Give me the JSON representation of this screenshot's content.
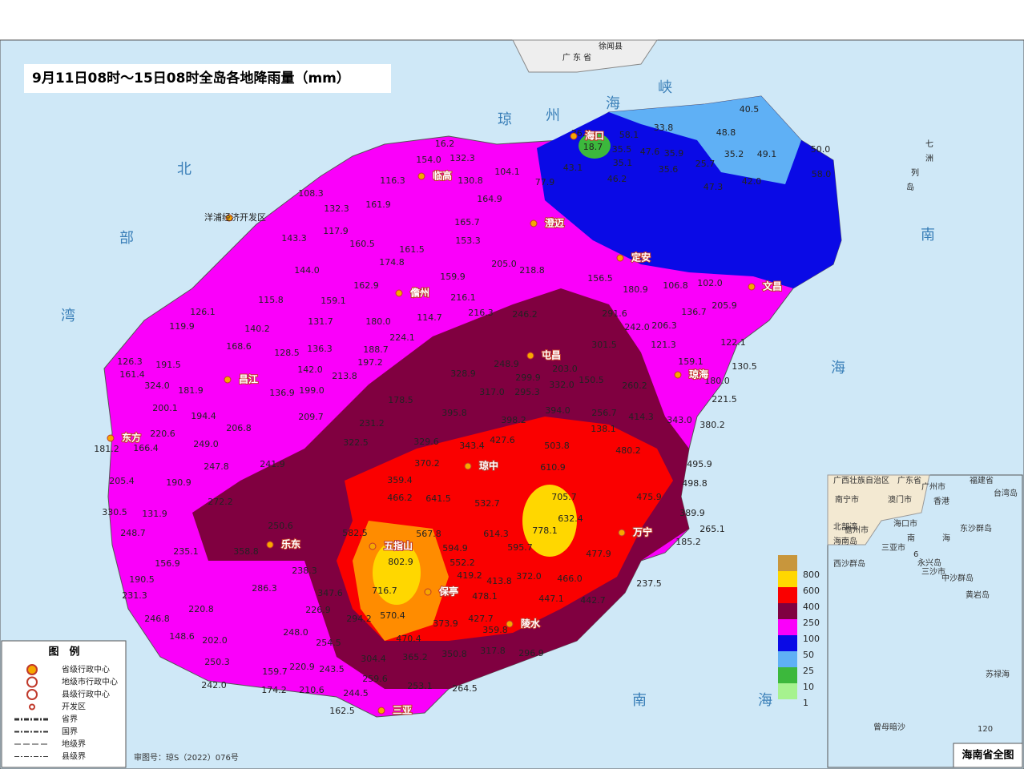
{
  "title": "9月11日08时～15日08时全岛各地降雨量（mm）",
  "approval": "审图号：琼S（2022）076号",
  "legend": {
    "title": "图　例",
    "items": [
      "省级行政中心",
      "地级市行政中心",
      "县级行政中心",
      "开发区",
      "省界",
      "国界",
      "地级界",
      "县级界"
    ]
  },
  "scale": [
    {
      "label": "800",
      "color": "#c8963c"
    },
    {
      "label": "600",
      "color": "#ffd700"
    },
    {
      "label": "400",
      "color": "#fa0000"
    },
    {
      "label": "250",
      "color": "#800040"
    },
    {
      "label": "100",
      "color": "#fa00fa"
    },
    {
      "label": "50",
      "color": "#0a0ae6"
    },
    {
      "label": "25",
      "color": "#5fb0f5"
    },
    {
      "label": "10",
      "color": "#3cb83c"
    },
    {
      "label": "1",
      "color": "#a6f28f"
    }
  ],
  "seas": [
    "琼",
    "州",
    "海",
    "峡",
    "北",
    "部",
    "湾",
    "南",
    "海",
    "南",
    "海",
    "广 东 省",
    "徐闻县",
    "七",
    "洲",
    "列",
    "岛"
  ],
  "places": [
    "海口",
    "临高",
    "澄迈",
    "定安",
    "文昌",
    "儋州",
    "洋浦经济开发区",
    "屯昌",
    "琼海",
    "昌江",
    "东方",
    "琼中",
    "五指山",
    "乐东",
    "万宁",
    "保亭",
    "陵水",
    "三亚"
  ],
  "stations": [
    "40.5",
    "33.8",
    "58.1",
    "36.0",
    "48.8",
    "35.5",
    "47.6",
    "35.9",
    "35.2",
    "49.1",
    "50.0",
    "25.7",
    "35.6",
    "35.1",
    "43.1",
    "46.2",
    "42.0",
    "58.0",
    "47.3",
    "16.2",
    "132.3",
    "154.0",
    "104.1",
    "77.9",
    "116.3",
    "108.3",
    "130.8",
    "164.9",
    "161.9",
    "132.3",
    "165.7",
    "117.9",
    "143.3",
    "160.5",
    "153.3",
    "161.5",
    "174.8",
    "205.0",
    "218.8",
    "144.0",
    "159.9",
    "156.5",
    "162.9",
    "102.0",
    "180.9",
    "106.8",
    "115.8",
    "159.1",
    "216.1",
    "126.1",
    "119.9",
    "140.2",
    "131.7",
    "180.0",
    "114.7",
    "216.3",
    "246.2",
    "291.6",
    "136.7",
    "205.9",
    "242.0",
    "206.3",
    "122.1",
    "168.6",
    "224.1",
    "301.5",
    "121.3",
    "128.5",
    "136.3",
    "188.7",
    "248.9",
    "159.1",
    "191.5",
    "324.0",
    "161.4",
    "126.3",
    "181.9",
    "200.1",
    "194.4",
    "206.8",
    "220.6",
    "249.0",
    "241.9",
    "205.4",
    "190.9",
    "247.8",
    "272.2",
    "131.9",
    "248.7",
    "156.9",
    "190.5",
    "231.3",
    "246.8",
    "220.8",
    "148.6",
    "202.0",
    "250.3",
    "242.0",
    "159.7",
    "220.9",
    "174.2",
    "210.6",
    "244.5",
    "162.5",
    "259.6",
    "253.1",
    "264.5",
    "304.4",
    "365.2",
    "350.8",
    "317.8",
    "296.9",
    "359.8",
    "427.7",
    "373.9",
    "470.4",
    "570.4",
    "716.7",
    "802.9",
    "582.5",
    "567.8",
    "614.3",
    "595.7",
    "778.1",
    "632.4",
    "705.7",
    "532.7",
    "641.5",
    "466.2",
    "503.8",
    "610.9",
    "480.2",
    "495.9",
    "498.8",
    "475.9",
    "389.9",
    "265.1",
    "185.2",
    "237.5",
    "442.7",
    "466.0",
    "477.9",
    "447.1",
    "413.8",
    "478.1",
    "372.0",
    "552.2",
    "594.9",
    "419.2",
    "358.8",
    "235.1",
    "286.3",
    "238.3",
    "250.6",
    "347.6",
    "226.9",
    "294.2",
    "248.0",
    "254.5",
    "243.5",
    "322.5",
    "329.6",
    "370.2",
    "359.4",
    "395.8",
    "328.9",
    "317.0",
    "398.2",
    "427.6",
    "343.4",
    "394.0",
    "332.0",
    "295.3",
    "299.9",
    "203.0",
    "150.5",
    "256.7",
    "138.1",
    "414.3",
    "260.2",
    "343.0",
    "380.2",
    "221.5",
    "180.0",
    "130.5",
    "213.8",
    "142.0",
    "199.0",
    "136.9",
    "209.7",
    "197.2",
    "178.5",
    "231.2",
    "166.4",
    "181.2",
    "330.5",
    "18.7"
  ],
  "inset": {
    "title": "海南省全图",
    "labels": [
      "广西壮族自治区",
      "广东省",
      "福建省",
      "台湾岛",
      "南宁市",
      "广州市",
      "香港",
      "澳门市",
      "北部湾",
      "海口市",
      "儋州市",
      "海南岛",
      "三亚市",
      "南",
      "海",
      "东沙群岛",
      "西沙群岛",
      "永兴岛",
      "三沙市",
      "中沙群岛",
      "黄岩岛",
      "苏禄海",
      "曾母暗沙",
      "120",
      "6"
    ]
  }
}
